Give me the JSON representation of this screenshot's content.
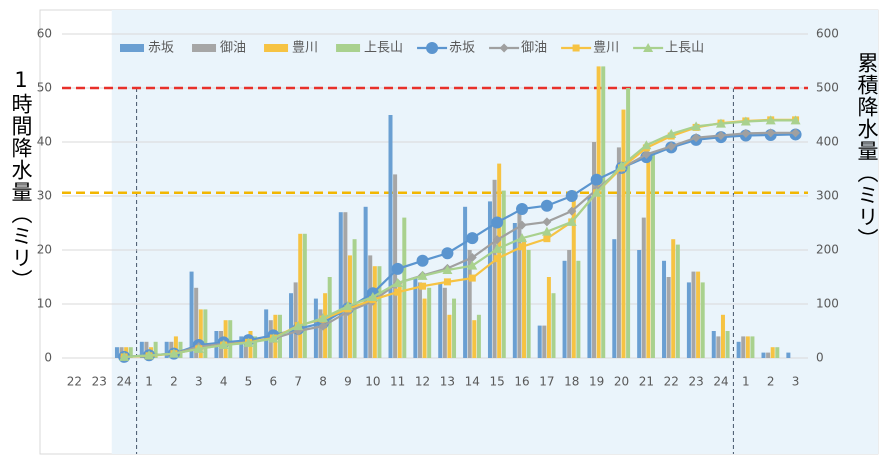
{
  "chart_data": {
    "type": "bar_line",
    "x_label": "時",
    "y_label": "1時間降水量（ミリ）",
    "y2_label": "累積降水量（ミリ）",
    "categories": [
      "22",
      "23",
      "24",
      "1",
      "2",
      "3",
      "4",
      "5",
      "6",
      "7",
      "8",
      "9",
      "10",
      "11",
      "12",
      "13",
      "14",
      "15",
      "16",
      "17",
      "18",
      "19",
      "20",
      "21",
      "22",
      "23",
      "24",
      "1",
      "2",
      "3"
    ],
    "ylim": [
      0,
      60
    ],
    "yticks": [
      0,
      10,
      20,
      30,
      40,
      50,
      60
    ],
    "y2lim": [
      0,
      600
    ],
    "y2ticks": [
      0,
      100,
      200,
      300,
      400,
      500,
      600
    ],
    "reference_lines": [
      {
        "value": 50,
        "color": "#e8302a"
      },
      {
        "value": 30.6,
        "color": "#f2b600"
      }
    ],
    "series": [
      {
        "name": "赤坂",
        "type": "bar",
        "color": "#6a9fd2",
        "values": [
          null,
          null,
          2,
          3,
          3,
          16,
          5,
          4,
          9,
          12,
          11,
          27,
          28,
          45,
          15,
          14,
          28,
          29,
          25,
          6,
          18,
          30,
          22,
          20,
          18,
          14,
          5,
          3,
          1,
          1
        ]
      },
      {
        "name": "御油",
        "type": "bar",
        "color": "#a6a6a6",
        "values": [
          null,
          null,
          2,
          3,
          3,
          13,
          5,
          3,
          7,
          14,
          9,
          27,
          19,
          34,
          14,
          13,
          20,
          33,
          27,
          6,
          20,
          40,
          39,
          26,
          15,
          16,
          4,
          4,
          1,
          0
        ]
      },
      {
        "name": "豊川",
        "type": "bar",
        "color": "#f6c343",
        "values": [
          null,
          null,
          2,
          2,
          4,
          9,
          7,
          5,
          8,
          23,
          12,
          19,
          17,
          14,
          11,
          8,
          7,
          36,
          22,
          15,
          31,
          54,
          46,
          37,
          22,
          16,
          8,
          4,
          2,
          0
        ]
      },
      {
        "name": "上長山",
        "type": "bar",
        "color": "#a9d18e",
        "values": [
          null,
          null,
          2,
          3,
          3,
          9,
          7,
          4,
          8,
          23,
          15,
          22,
          17,
          26,
          13,
          11,
          8,
          31,
          20,
          12,
          18,
          54,
          50,
          38,
          21,
          14,
          5,
          4,
          2,
          0
        ]
      },
      {
        "name": "赤坂",
        "type": "line",
        "marker": "circle",
        "axis": "y2",
        "color": "#5b95cf",
        "values": [
          null,
          null,
          2,
          5,
          8,
          24,
          29,
          33,
          42,
          54,
          65,
          92,
          120,
          165,
          180,
          194,
          222,
          251,
          276,
          282,
          300,
          330,
          352,
          372,
          390,
          404,
          409,
          412,
          413,
          414
        ]
      },
      {
        "name": "御油",
        "type": "line",
        "marker": "diamond",
        "axis": "y2",
        "color": "#a0a0a0",
        "values": [
          null,
          null,
          2,
          5,
          8,
          21,
          26,
          29,
          36,
          50,
          59,
          86,
          105,
          139,
          153,
          166,
          186,
          219,
          246,
          252,
          272,
          312,
          351,
          377,
          392,
          408,
          412,
          416,
          417,
          417
        ]
      },
      {
        "name": "豊川",
        "type": "line",
        "marker": "square",
        "axis": "y2",
        "color": "#f6c343",
        "values": [
          null,
          null,
          2,
          4,
          8,
          17,
          24,
          29,
          37,
          60,
          72,
          91,
          108,
          122,
          133,
          141,
          148,
          184,
          206,
          221,
          252,
          306,
          352,
          389,
          411,
          427,
          435,
          439,
          441,
          441
        ]
      },
      {
        "name": "上長山",
        "type": "line",
        "marker": "triangle",
        "axis": "y2",
        "color": "#a9d18e",
        "values": [
          null,
          null,
          2,
          5,
          8,
          17,
          24,
          28,
          36,
          59,
          74,
          96,
          113,
          139,
          152,
          163,
          171,
          202,
          222,
          234,
          252,
          306,
          356,
          394,
          415,
          429,
          434,
          438,
          440,
          440
        ]
      }
    ]
  }
}
